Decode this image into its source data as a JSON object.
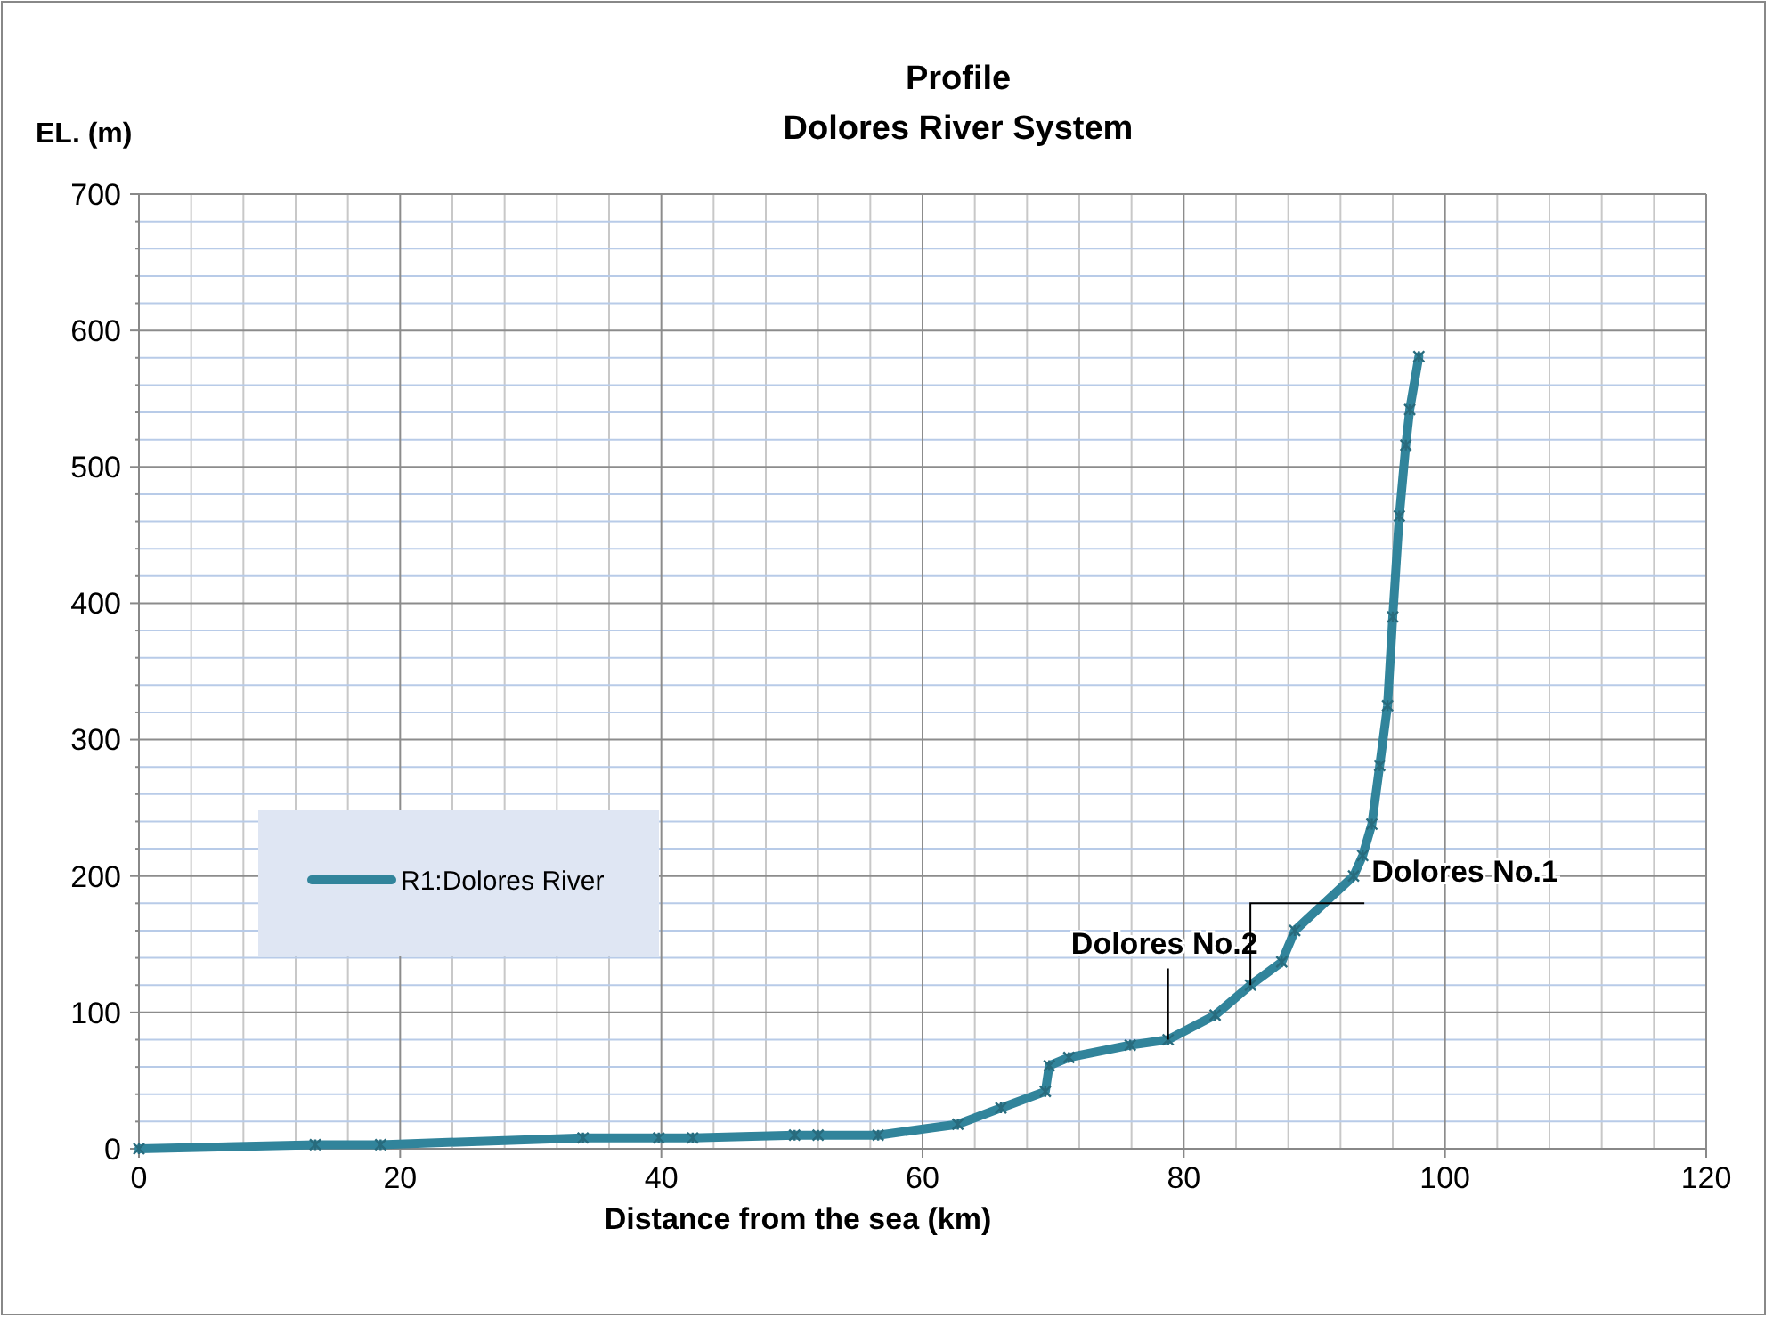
{
  "chart_data": {
    "type": "line",
    "title": "Profile\nDolores River System",
    "ylabel": "EL. (m)",
    "xlabel": "Distance from the sea (km)",
    "x": [
      0,
      13.5,
      18.5,
      34,
      39.8,
      42.4,
      50.2,
      52,
      56.6,
      62.7,
      66,
      69.4,
      69.7,
      71.2,
      75.9,
      78.8,
      82.4,
      85.1,
      87.5,
      88.5,
      93,
      93.7,
      94.4,
      95,
      95.6,
      96,
      96.5,
      97,
      97.3,
      98
    ],
    "series": [
      {
        "name": "R1:Dolores River",
        "color": "#31849b",
        "values": [
          0,
          3,
          3,
          8,
          8,
          8,
          10,
          10,
          10,
          18,
          30,
          42,
          61,
          67,
          76,
          80,
          98,
          120,
          137,
          160,
          200,
          215,
          238,
          281,
          325,
          390,
          464,
          516,
          542,
          581
        ]
      }
    ],
    "xlim": [
      0,
      120
    ],
    "xticks": [
      0,
      20,
      40,
      60,
      80,
      100,
      120
    ],
    "ylim": [
      0,
      700
    ],
    "yticks": [
      0,
      {
        "value": 20,
        "label": null
      },
      {
        "value": 40,
        "label": null
      },
      {
        "value": 60,
        "label": null
      },
      {
        "value": 80,
        "label": null
      },
      100,
      {
        "value": 120,
        "label": null
      },
      {
        "value": 140,
        "label": null
      },
      {
        "value": 160,
        "label": null
      },
      {
        "value": 180,
        "label": null
      },
      200,
      {
        "value": 220,
        "label": null
      },
      {
        "value": 240,
        "label": null
      },
      {
        "value": 260,
        "label": null
      },
      {
        "value": 280,
        "label": null
      },
      300,
      {
        "value": 320,
        "label": null
      },
      {
        "value": 340,
        "label": null
      },
      {
        "value": 360,
        "label": null
      },
      {
        "value": 380,
        "label": null
      },
      400,
      {
        "value": 420,
        "label": null
      },
      {
        "value": 440,
        "label": null
      },
      {
        "value": 460,
        "label": null
      },
      {
        "value": 480,
        "label": null
      },
      500,
      {
        "value": 520,
        "label": null
      },
      {
        "value": 540,
        "label": null
      },
      {
        "value": 560,
        "label": null
      },
      {
        "value": 580,
        "label": null
      },
      600,
      {
        "value": 620,
        "label": null
      },
      {
        "value": 640,
        "label": null
      },
      {
        "value": 660,
        "label": null
      },
      {
        "value": 680,
        "label": null
      },
      700
    ],
    "grid": true,
    "legend": "left",
    "marker": "cross",
    "line_style": "solid",
    "annotations": [
      {
        "text": "Dolores No.2",
        "x": 78.8,
        "y": 80
      },
      {
        "text": "Dolores No.1",
        "x": 85.1,
        "y": 120
      }
    ]
  }
}
